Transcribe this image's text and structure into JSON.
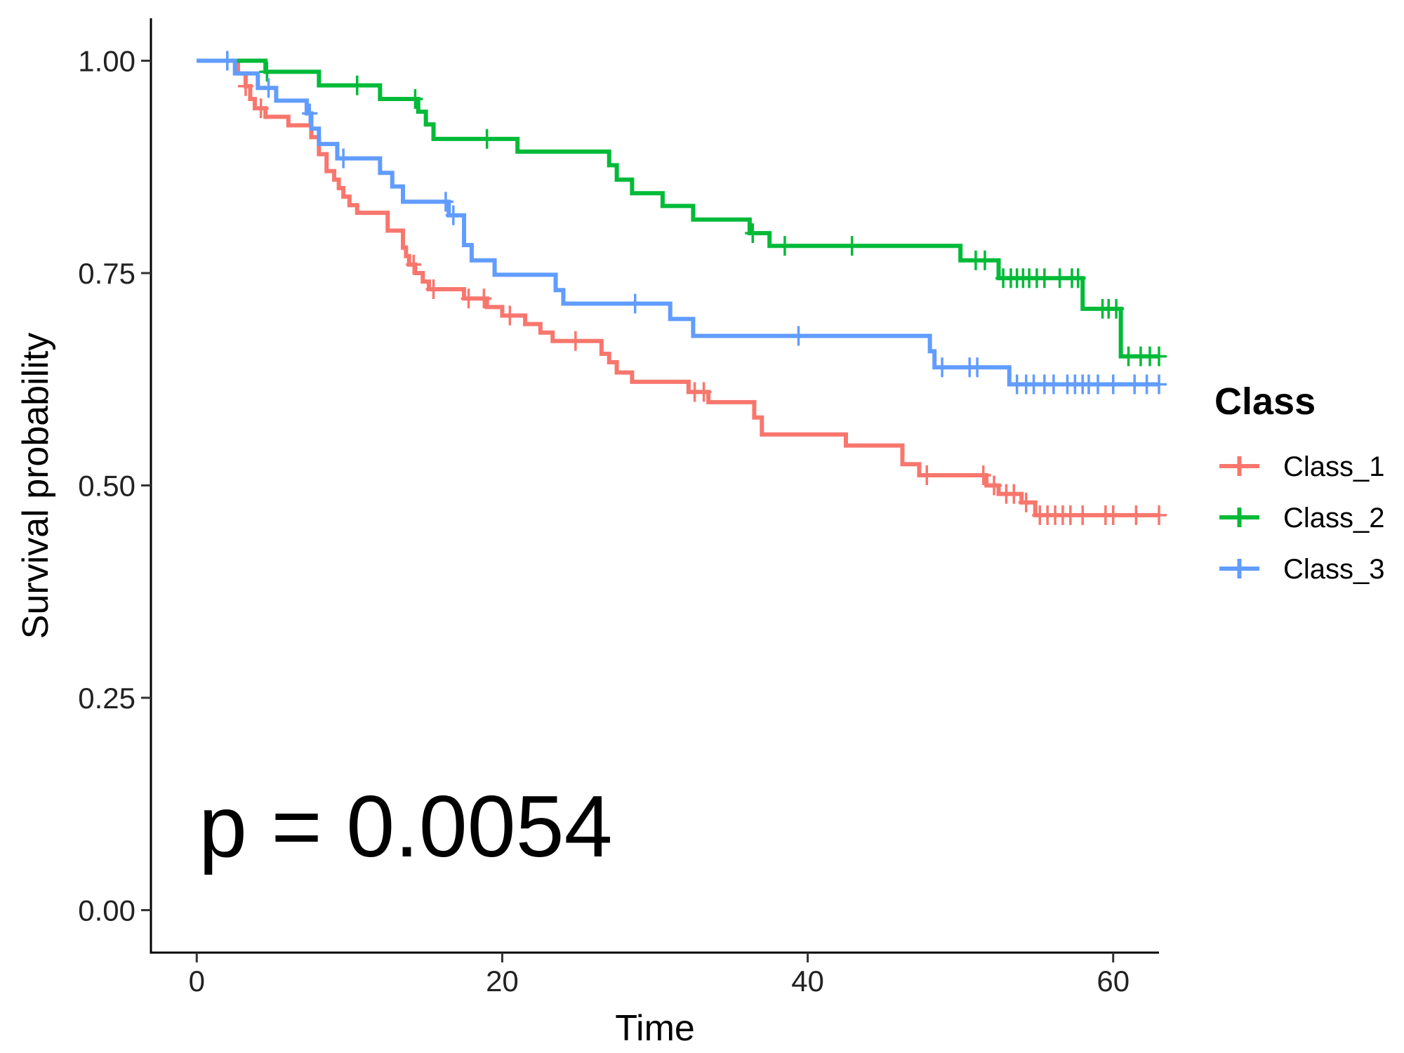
{
  "chart_data": {
    "type": "survival",
    "x_label": "Time",
    "y_label": "Survival probability",
    "annotation": "p = 0.0054",
    "legend_title": "Class",
    "legend": "right",
    "xlim": [
      -3,
      63
    ],
    "ylim": [
      -0.05,
      1.05
    ],
    "xticks": [
      0,
      20,
      40,
      60
    ],
    "yticks": [
      {
        "value": 0,
        "label": "0.00"
      },
      {
        "value": 0.25,
        "label": "0.25"
      },
      {
        "value": 0.5,
        "label": "0.50"
      },
      {
        "value": 0.75,
        "label": "0.75"
      },
      {
        "value": 1,
        "label": "1.00"
      }
    ],
    "series": [
      {
        "name": "Class_1",
        "color": "#F8766D",
        "x": [
          0,
          2.7,
          3.2,
          3.5,
          3.8,
          4.5,
          6,
          7.5,
          8,
          8.5,
          9,
          9.3,
          9.6,
          10,
          10.5,
          12.5,
          13.5,
          13.7,
          13.9,
          14.3,
          14.8,
          15.2,
          17.5,
          19,
          20,
          21.5,
          22.5,
          23.3,
          26.5,
          27,
          27.5,
          28.5,
          32.2,
          33.5,
          36.5,
          37,
          42.5,
          46.2,
          47.3,
          51.7,
          52.5,
          54,
          54.9
        ],
        "values": [
          1,
          0.985,
          0.97,
          0.955,
          0.944,
          0.934,
          0.924,
          0.91,
          0.89,
          0.87,
          0.86,
          0.85,
          0.84,
          0.83,
          0.821,
          0.8,
          0.78,
          0.77,
          0.76,
          0.75,
          0.74,
          0.731,
          0.72,
          0.71,
          0.7,
          0.69,
          0.68,
          0.67,
          0.655,
          0.645,
          0.633,
          0.622,
          0.61,
          0.598,
          0.58,
          0.56,
          0.547,
          0.525,
          0.512,
          0.5,
          0.49,
          0.48,
          0.465
        ],
        "censor_x": [
          3.2,
          4.2,
          14.2,
          15.5,
          17.8,
          18.8,
          20.5,
          24.8,
          32.6,
          33.2,
          47.8,
          51.5,
          52.2,
          53,
          53.5,
          54.3,
          55.2,
          55.7,
          56.2,
          56.7,
          57.2,
          58,
          59.5,
          60,
          61.5,
          63
        ],
        "censor_values": [
          0.97,
          0.944,
          0.76,
          0.731,
          0.72,
          0.72,
          0.7,
          0.67,
          0.61,
          0.61,
          0.512,
          0.512,
          0.5,
          0.49,
          0.49,
          0.48,
          0.465,
          0.465,
          0.465,
          0.465,
          0.465,
          0.465,
          0.465,
          0.465,
          0.465,
          0.465
        ]
      },
      {
        "name": "Class_2",
        "color": "#00BA38",
        "x": [
          0,
          4.5,
          8,
          12,
          14.5,
          15,
          15.5,
          21,
          27,
          27.5,
          28.5,
          30.5,
          32.5,
          36.2,
          37.5,
          50,
          52.5,
          58,
          60.5
        ],
        "values": [
          1,
          0.987,
          0.971,
          0.955,
          0.94,
          0.925,
          0.908,
          0.893,
          0.877,
          0.86,
          0.844,
          0.829,
          0.813,
          0.797,
          0.782,
          0.765,
          0.744,
          0.708,
          0.652
        ],
        "censor_x": [
          2,
          4.6,
          10.5,
          14.3,
          19,
          36.4,
          38.5,
          42.9,
          51,
          51.6,
          52.8,
          53.3,
          53.7,
          54.1,
          54.5,
          55,
          55.5,
          56.5,
          57.3,
          57.7,
          59.3,
          59.7,
          60.2,
          61,
          61.8,
          62.4,
          63
        ],
        "censor_values": [
          1,
          0.987,
          0.971,
          0.955,
          0.908,
          0.797,
          0.782,
          0.782,
          0.765,
          0.765,
          0.744,
          0.744,
          0.744,
          0.744,
          0.744,
          0.744,
          0.744,
          0.744,
          0.744,
          0.744,
          0.708,
          0.708,
          0.708,
          0.652,
          0.652,
          0.652,
          0.652
        ]
      },
      {
        "name": "Class_3",
        "color": "#619CFF",
        "x": [
          0,
          2.5,
          4,
          5.2,
          7.2,
          7.5,
          8,
          9.2,
          12,
          12.8,
          13.5,
          16.5,
          17.5,
          18,
          19.5,
          23.5,
          24,
          31,
          32.5,
          48,
          48.3,
          53.2
        ],
        "values": [
          1,
          0.985,
          0.968,
          0.953,
          0.938,
          0.92,
          0.902,
          0.885,
          0.868,
          0.852,
          0.834,
          0.818,
          0.783,
          0.765,
          0.748,
          0.73,
          0.714,
          0.696,
          0.676,
          0.658,
          0.639,
          0.619
        ],
        "censor_x": [
          2,
          4.7,
          7.4,
          9.6,
          16.3,
          16.8,
          28.7,
          39.4,
          48.8,
          50.6,
          51.1,
          53.7,
          54.3,
          54.8,
          55.5,
          56.1,
          57,
          57.5,
          58,
          58.4,
          59,
          60,
          61.4,
          62.2,
          63
        ],
        "censor_values": [
          1,
          0.968,
          0.938,
          0.885,
          0.834,
          0.818,
          0.714,
          0.676,
          0.639,
          0.639,
          0.639,
          0.619,
          0.619,
          0.619,
          0.619,
          0.619,
          0.619,
          0.619,
          0.619,
          0.619,
          0.619,
          0.619,
          0.619,
          0.619,
          0.619
        ]
      }
    ]
  }
}
